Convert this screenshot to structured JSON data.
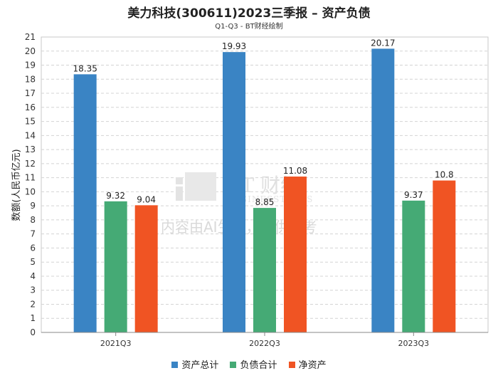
{
  "title": "美力科技(300611)2023三季报 – 资产负债",
  "subtitle": "Q1-Q3 - BT财经绘制",
  "watermark": {
    "logo_text": "BT 财经",
    "logo_sub": "BUSINESSTIMES",
    "notice": "内容由AI生成，仅供参考"
  },
  "chart_data": {
    "type": "bar",
    "categories": [
      "2021Q3",
      "2022Q3",
      "2023Q3"
    ],
    "series": [
      {
        "name": "资产总计",
        "values": [
          18.35,
          19.93,
          20.17
        ],
        "color": "#3a84c4"
      },
      {
        "name": "负债合计",
        "values": [
          9.32,
          8.85,
          9.37
        ],
        "color": "#45aa75"
      },
      {
        "name": "净资产",
        "values": [
          9.04,
          11.08,
          10.8
        ],
        "color": "#f05423"
      }
    ],
    "ylabel": "数额(人民币亿元)",
    "xlabel": "",
    "ylim": [
      0,
      21
    ],
    "yticks": [
      0,
      1,
      2,
      3,
      4,
      5,
      6,
      7,
      8,
      9,
      10,
      11,
      12,
      13,
      14,
      15,
      16,
      17,
      18,
      19,
      20,
      21
    ],
    "grid": true,
    "legend_position": "bottom"
  }
}
